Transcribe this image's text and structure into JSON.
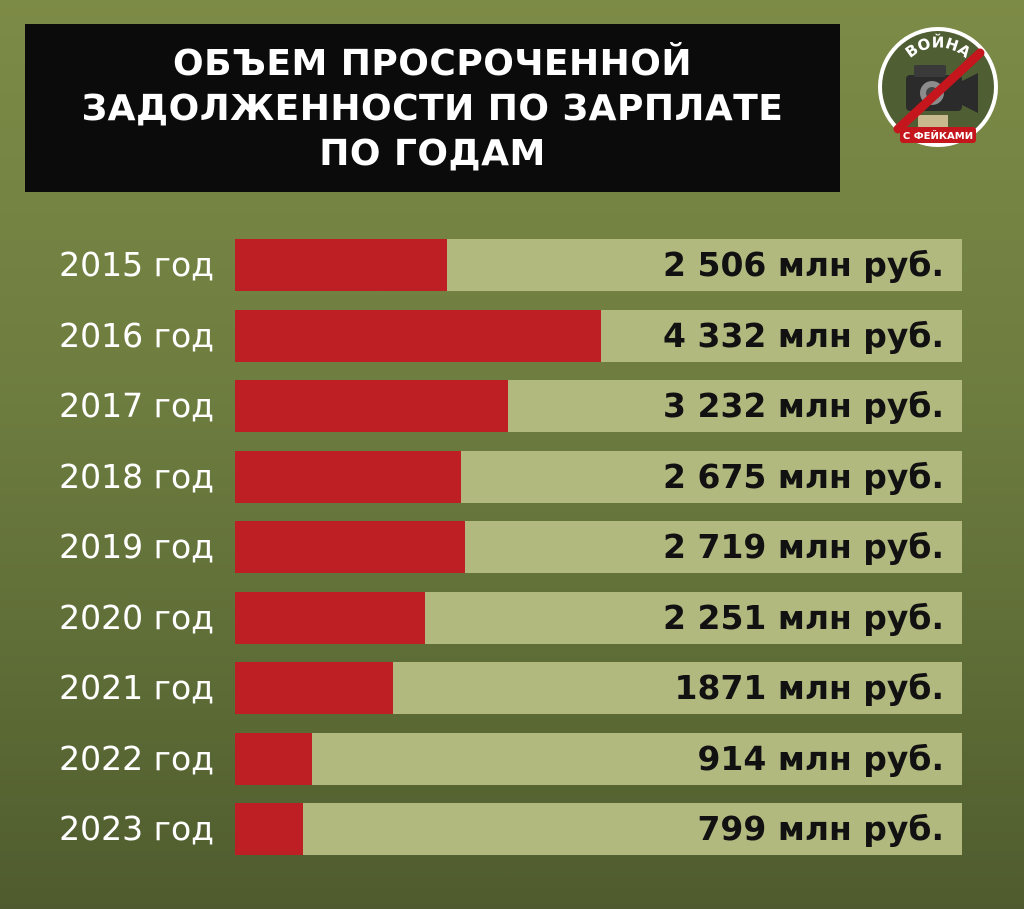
{
  "header": {
    "title_lines": [
      "ОБЪЕМ ПРОСРОЧЕННОЙ",
      "ЗАДОЛЖЕННОСТИ ПО ЗАРПЛАТЕ",
      "ПО ГОДАМ"
    ]
  },
  "logo": {
    "top_text": "ВОЙНА",
    "bottom_text": "С ФЕЙКАМИ",
    "icon": "video-camera-crossed-icon"
  },
  "colors": {
    "bar_fill": "#bd1f24",
    "bar_track": "#b1b97f",
    "title_bg": "#0b0b0b",
    "background": "#6f7e40"
  },
  "chart_data": {
    "type": "bar",
    "orientation": "horizontal",
    "title": "ОБЪЕМ ПРОСРОЧЕННОЙ ЗАДОЛЖЕННОСТИ ПО ЗАРПЛАТЕ ПО ГОДАМ",
    "categories": [
      "2015 год",
      "2016 год",
      "2017 год",
      "2018 год",
      "2019 год",
      "2020 год",
      "2021 год",
      "2022 год",
      "2023 год"
    ],
    "values": [
      2506,
      4332,
      3232,
      2675,
      2719,
      2251,
      1871,
      914,
      799
    ],
    "value_labels": [
      "2 506 млн руб.",
      "4 332 млн руб.",
      "3 232 млн руб.",
      "2 675 млн руб.",
      "2 719 млн руб.",
      "2 251 млн руб.",
      "1871 млн руб.",
      "914 млн руб.",
      "799 млн руб."
    ],
    "xlim": [
      0,
      8600
    ],
    "grid": false,
    "legend": "none"
  }
}
